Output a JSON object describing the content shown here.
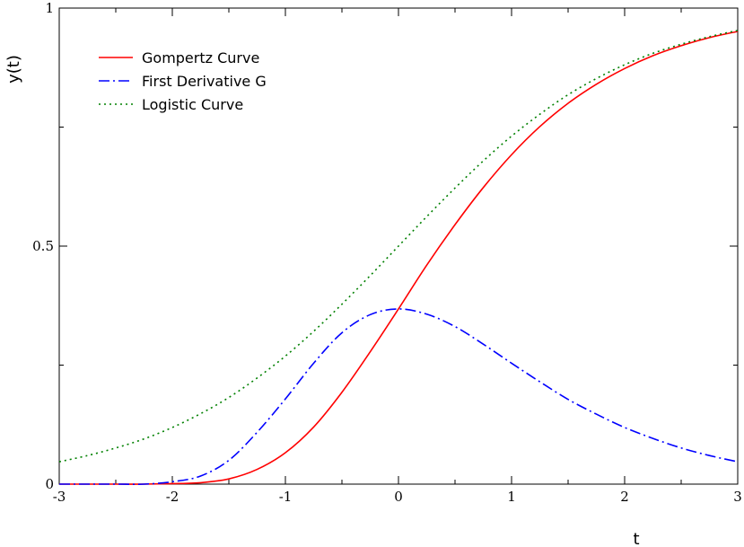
{
  "chart_data": {
    "type": "line",
    "title": "",
    "xlabel": "t",
    "ylabel": "y(t)",
    "xlim": [
      -3,
      3
    ],
    "ylim": [
      0,
      1
    ],
    "x_ticks": [
      -3,
      -2,
      -1,
      0,
      1,
      2,
      3
    ],
    "x_tick_labels": [
      "-3",
      "-2",
      "-1",
      "0",
      "1",
      "2",
      "3"
    ],
    "y_ticks": [
      0,
      0.5,
      1
    ],
    "y_tick_labels": [
      "0",
      "0.5",
      "1"
    ],
    "grid": false,
    "legend_position": "top-left",
    "series": [
      {
        "name": "Gompertz Curve",
        "color": "#ff0000",
        "dash": "solid",
        "x": [
          -3,
          -2.75,
          -2.5,
          -2.25,
          -2,
          -1.75,
          -1.5,
          -1.25,
          -1,
          -0.75,
          -0.5,
          -0.25,
          0,
          0.25,
          0.5,
          0.75,
          1,
          1.25,
          1.5,
          1.75,
          2,
          2.25,
          2.5,
          2.75,
          3
        ],
        "y": [
          0.0,
          0.0,
          0.0,
          0.0,
          0.001,
          0.003,
          0.011,
          0.031,
          0.066,
          0.12,
          0.193,
          0.278,
          0.368,
          0.46,
          0.545,
          0.623,
          0.692,
          0.751,
          0.8,
          0.84,
          0.873,
          0.9,
          0.921,
          0.938,
          0.951
        ]
      },
      {
        "name": "First Derivative G",
        "color": "#0000ff",
        "dash": "dash-dot",
        "x": [
          -3,
          -2.75,
          -2.5,
          -2.25,
          -2,
          -1.75,
          -1.5,
          -1.25,
          -1,
          -0.75,
          -0.5,
          -0.25,
          0,
          0.25,
          0.5,
          0.75,
          1,
          1.25,
          1.5,
          1.75,
          2,
          2.25,
          2.5,
          2.75,
          3
        ],
        "y": [
          0.0,
          0.0,
          0.0,
          0.0,
          0.005,
          0.017,
          0.05,
          0.109,
          0.179,
          0.254,
          0.318,
          0.356,
          0.368,
          0.357,
          0.331,
          0.294,
          0.254,
          0.215,
          0.178,
          0.147,
          0.119,
          0.096,
          0.076,
          0.06,
          0.047
        ]
      },
      {
        "name": "Logistic Curve",
        "color": "#008000",
        "dash": "dotted",
        "x": [
          -3,
          -2.75,
          -2.5,
          -2.25,
          -2,
          -1.75,
          -1.5,
          -1.25,
          -1,
          -0.75,
          -0.5,
          -0.25,
          0,
          0.25,
          0.5,
          0.75,
          1,
          1.25,
          1.5,
          1.75,
          2,
          2.25,
          2.5,
          2.75,
          3
        ],
        "y": [
          0.047,
          0.06,
          0.076,
          0.095,
          0.119,
          0.148,
          0.182,
          0.223,
          0.269,
          0.321,
          0.378,
          0.438,
          0.5,
          0.562,
          0.622,
          0.679,
          0.731,
          0.777,
          0.818,
          0.852,
          0.881,
          0.905,
          0.924,
          0.94,
          0.953
        ]
      }
    ]
  }
}
